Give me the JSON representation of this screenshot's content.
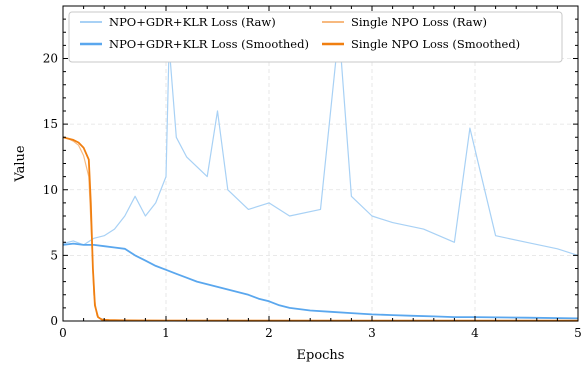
{
  "chart_data": {
    "type": "line",
    "title": "",
    "xlabel": "Epochs",
    "ylabel": "Value",
    "xlim": [
      0,
      5
    ],
    "ylim": [
      0,
      24
    ],
    "xticks": [
      0,
      1,
      2,
      3,
      4,
      5
    ],
    "yticks": [
      0,
      5,
      10,
      15,
      20
    ],
    "grid": true,
    "legend": {
      "placement": "top",
      "columns": 2,
      "entries": [
        "NPO+GDR+KLR Loss (Raw)",
        "NPO+GDR+KLR Loss (Smoothed)",
        "Single NPO Loss (Raw)",
        "Single NPO Loss (Smoothed)"
      ]
    },
    "series": [
      {
        "name": "NPO+GDR+KLR Loss (Raw)",
        "color": "#a8d1f5",
        "style": "raw",
        "x": [
          0,
          0.1,
          0.2,
          0.3,
          0.4,
          0.5,
          0.6,
          0.7,
          0.8,
          0.9,
          1.0,
          1.03,
          1.1,
          1.2,
          1.4,
          1.5,
          1.6,
          1.8,
          2.0,
          2.2,
          2.5,
          2.68,
          2.8,
          3.0,
          3.2,
          3.5,
          3.8,
          3.95,
          4.2,
          4.5,
          4.8,
          5.0
        ],
        "y": [
          5.9,
          6.1,
          5.8,
          6.3,
          6.5,
          7.0,
          8.0,
          9.5,
          8.0,
          9.0,
          11.0,
          21.0,
          14.0,
          12.5,
          11.0,
          16.0,
          10.0,
          8.5,
          9.0,
          8.0,
          8.5,
          22.2,
          9.5,
          8.0,
          7.5,
          7.0,
          6.0,
          14.7,
          6.5,
          6.0,
          5.5,
          5.0
        ]
      },
      {
        "name": "NPO+GDR+KLR Loss (Smoothed)",
        "color": "#5aa7ee",
        "style": "smoothed",
        "x": [
          0,
          0.1,
          0.2,
          0.3,
          0.4,
          0.5,
          0.6,
          0.7,
          0.8,
          0.9,
          1.0,
          1.1,
          1.2,
          1.3,
          1.4,
          1.5,
          1.6,
          1.7,
          1.8,
          1.9,
          2.0,
          2.1,
          2.2,
          2.4,
          2.6,
          2.8,
          3.0,
          3.2,
          3.4,
          3.6,
          3.8,
          4.0,
          4.5,
          5.0
        ],
        "y": [
          5.8,
          5.9,
          5.8,
          5.8,
          5.7,
          5.6,
          5.5,
          5.0,
          4.6,
          4.2,
          3.9,
          3.6,
          3.3,
          3.0,
          2.8,
          2.6,
          2.4,
          2.2,
          2.0,
          1.7,
          1.5,
          1.2,
          1.0,
          0.8,
          0.7,
          0.6,
          0.5,
          0.45,
          0.4,
          0.35,
          0.3,
          0.3,
          0.25,
          0.2
        ]
      },
      {
        "name": "Single NPO Loss (Raw)",
        "color": "#f7b97f",
        "style": "raw",
        "x": [
          0,
          0.05,
          0.1,
          0.15,
          0.2,
          0.25,
          0.28,
          0.3,
          0.33,
          0.36,
          0.4,
          0.5,
          1.0,
          2.0,
          3.0,
          4.0,
          5.0
        ],
        "y": [
          14.0,
          13.9,
          13.7,
          13.4,
          12.6,
          11.0,
          6.0,
          2.0,
          0.4,
          0.2,
          0.1,
          0.08,
          0.05,
          0.04,
          0.03,
          0.03,
          0.03
        ]
      },
      {
        "name": "Single NPO Loss (Smoothed)",
        "color": "#f07f10",
        "style": "smoothed",
        "x": [
          0,
          0.05,
          0.1,
          0.15,
          0.2,
          0.25,
          0.27,
          0.29,
          0.31,
          0.34,
          0.38,
          0.45,
          0.6,
          1.0,
          2.0,
          3.0,
          4.0,
          5.0
        ],
        "y": [
          14.0,
          13.9,
          13.8,
          13.6,
          13.2,
          12.3,
          9.0,
          4.0,
          1.2,
          0.3,
          0.1,
          0.06,
          0.04,
          0.03,
          0.02,
          0.02,
          0.02,
          0.02
        ]
      }
    ]
  }
}
